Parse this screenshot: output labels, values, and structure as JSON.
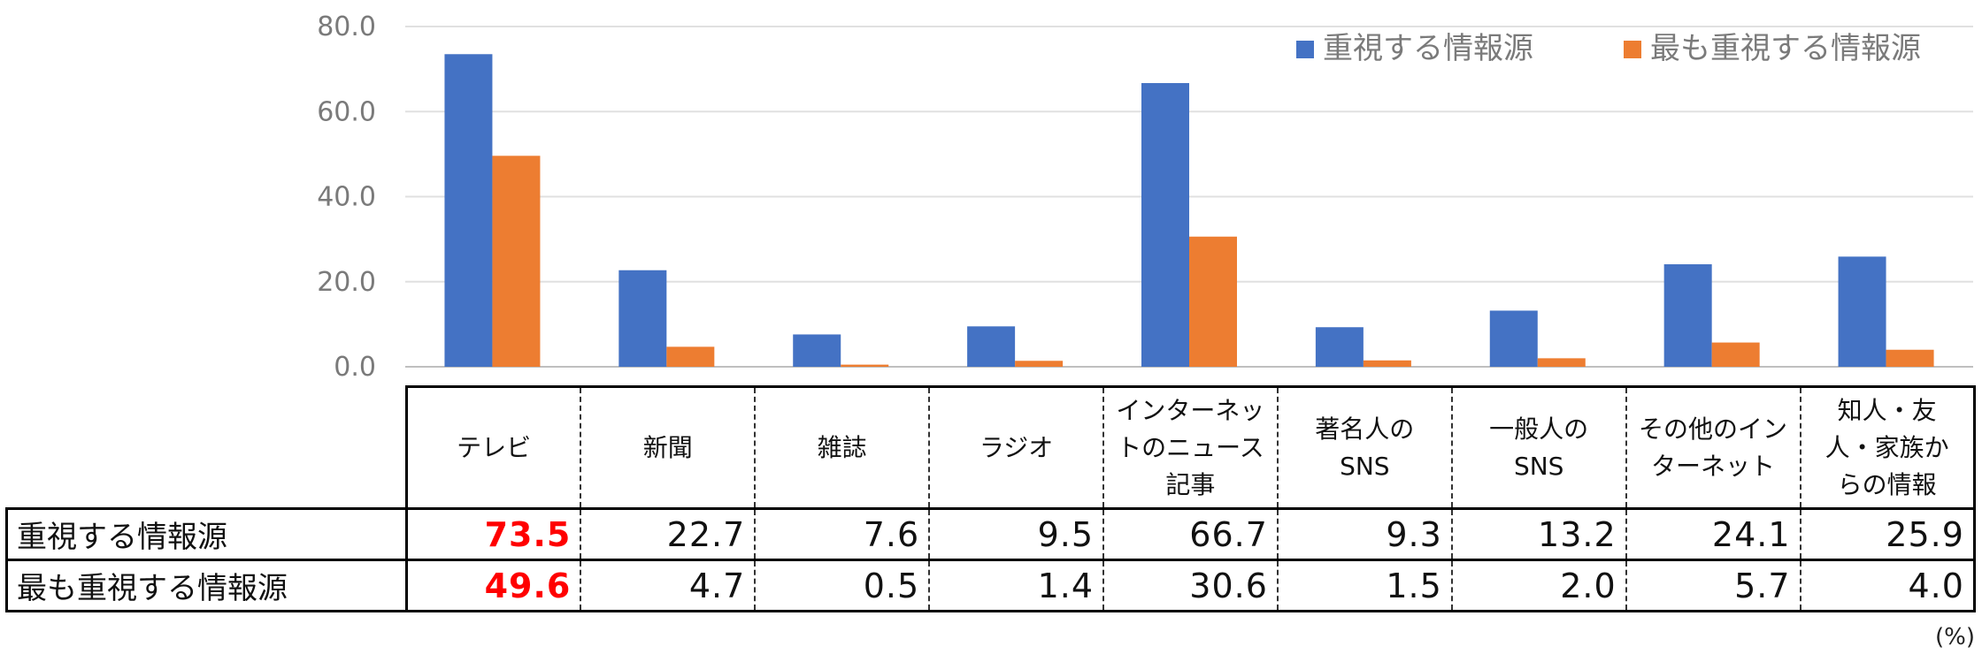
{
  "chart_data": {
    "type": "bar",
    "categories": [
      [
        "テレビ"
      ],
      [
        "新聞"
      ],
      [
        "雑誌"
      ],
      [
        "ラジオ"
      ],
      [
        "インターネッ",
        "トのニュース",
        "記事"
      ],
      [
        "著名人の",
        "SNS"
      ],
      [
        "一般人の",
        "SNS"
      ],
      [
        "その他のイン",
        "ターネット"
      ],
      [
        "知人・友",
        "人・家族か",
        "らの情報"
      ]
    ],
    "series": [
      {
        "name": "重視する情報源",
        "color": "#4472C4",
        "values": [
          73.5,
          22.7,
          7.6,
          9.5,
          66.7,
          9.3,
          13.2,
          24.1,
          25.9
        ],
        "labels": [
          "73.5",
          "22.7",
          "7.6",
          "9.5",
          "66.7",
          "9.3",
          "13.2",
          "24.1",
          "25.9"
        ]
      },
      {
        "name": "最も重視する情報源",
        "color": "#ED7D31",
        "values": [
          49.6,
          4.7,
          0.5,
          1.4,
          30.6,
          1.5,
          2.0,
          5.7,
          4.0
        ],
        "labels": [
          "49.6",
          "4.7",
          "0.5",
          "1.4",
          "30.6",
          "1.5",
          "2.0",
          "5.7",
          "4.0"
        ]
      }
    ],
    "ylim": [
      0,
      80
    ],
    "yticks": [
      "0.0",
      "20.0",
      "40.0",
      "60.0",
      "80.0"
    ],
    "ytick_values": [
      0,
      20,
      40,
      60,
      80
    ],
    "grid": true,
    "legend_position": "top-right",
    "highlight_color": "#FF0000",
    "highlight_column": 0,
    "unit_note": "(%)"
  }
}
